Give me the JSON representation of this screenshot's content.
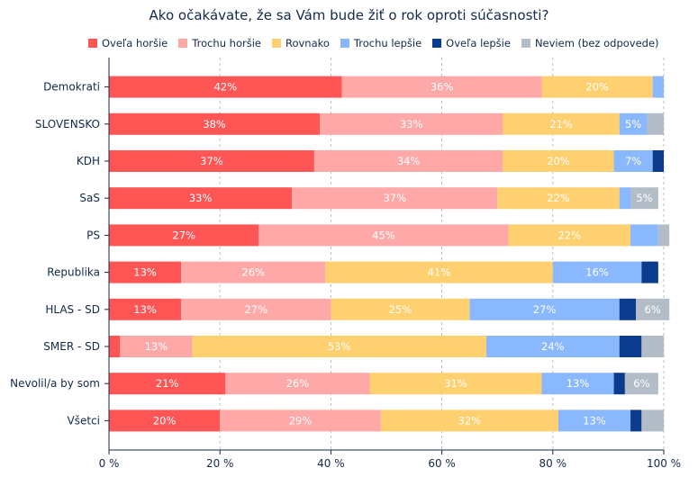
{
  "chart_data": {
    "type": "bar",
    "orientation": "horizontal",
    "stacked": true,
    "title": "Ako očakávate, že sa Vám bude žiť o rok oproti súčasnosti?",
    "xlabel": "",
    "ylabel": "",
    "xlim": [
      0,
      100
    ],
    "x_ticks": [
      "0 %",
      "20 %",
      "40 %",
      "60 %",
      "80 %",
      "100 %"
    ],
    "grid": "vertical dashed",
    "legend_position": "top",
    "categories": [
      "Demokrati",
      "SLOVENSKO",
      "KDH",
      "SaS",
      "PS",
      "Republika",
      "HLAS - SD",
      "SMER - SD",
      "Nevolil/a by som",
      "Všetci"
    ],
    "series": [
      {
        "name": "Oveľa horšie",
        "color": "#ff5555",
        "values": [
          42,
          38,
          37,
          33,
          27,
          13,
          13,
          2,
          21,
          20
        ]
      },
      {
        "name": "Trochu horšie",
        "color": "#ffa8a8",
        "values": [
          36,
          33,
          34,
          37,
          45,
          26,
          27,
          13,
          26,
          29
        ]
      },
      {
        "name": "Rovnako",
        "color": "#ffd070",
        "values": [
          20,
          21,
          20,
          22,
          22,
          41,
          25,
          53,
          31,
          32
        ]
      },
      {
        "name": "Trochu lepšie",
        "color": "#8ab8ff",
        "values": [
          2,
          5,
          7,
          2,
          5,
          16,
          27,
          24,
          13,
          13
        ]
      },
      {
        "name": "Oveľa lepšie",
        "color": "#0a3b8c",
        "values": [
          0,
          0,
          2,
          0,
          0,
          3,
          3,
          4,
          2,
          2
        ]
      },
      {
        "name": "Neviem (bez odpovede)",
        "color": "#b3bdc8",
        "values": [
          0,
          3,
          0,
          5,
          2,
          0,
          6,
          4,
          6,
          4
        ]
      }
    ],
    "data_labels": [
      [
        "42%",
        "36%",
        "20%",
        "",
        "",
        ""
      ],
      [
        "38%",
        "33%",
        "21%",
        "5%",
        "",
        ""
      ],
      [
        "37%",
        "34%",
        "20%",
        "7%",
        "",
        ""
      ],
      [
        "33%",
        "37%",
        "22%",
        "",
        "",
        "5%"
      ],
      [
        "27%",
        "45%",
        "22%",
        "",
        "",
        ""
      ],
      [
        "13%",
        "26%",
        "41%",
        "16%",
        "",
        ""
      ],
      [
        "13%",
        "27%",
        "25%",
        "27%",
        "",
        "6%"
      ],
      [
        "",
        "13%",
        "53%",
        "24%",
        "",
        ""
      ],
      [
        "21%",
        "26%",
        "31%",
        "13%",
        "",
        "6%"
      ],
      [
        "20%",
        "29%",
        "32%",
        "13%",
        "",
        ""
      ]
    ]
  }
}
